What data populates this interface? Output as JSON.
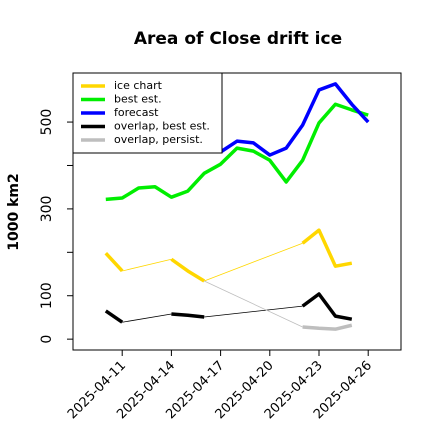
{
  "chart_data": {
    "type": "line",
    "title": "Area of Close drift ice",
    "y_label": "1000 km2",
    "x": [
      "2025-04-10",
      "2025-04-11",
      "2025-04-12",
      "2025-04-13",
      "2025-04-14",
      "2025-04-15",
      "2025-04-16",
      "2025-04-17",
      "2025-04-18",
      "2025-04-19",
      "2025-04-20",
      "2025-04-21",
      "2025-04-22",
      "2025-04-23",
      "2025-04-24",
      "2025-04-25",
      "2025-04-26"
    ],
    "xlim": [
      "2025-04-08",
      "2025-04-28"
    ],
    "xticks": [
      "2025-04-11",
      "2025-04-14",
      "2025-04-17",
      "2025-04-20",
      "2025-04-23",
      "2025-04-26"
    ],
    "xtick_colors": [
      "#000000",
      "#000000",
      "#228b22",
      "#000000",
      "#000000",
      "#000000"
    ],
    "ylim": [
      -25,
      613
    ],
    "yticks": [
      0,
      100,
      300,
      500
    ],
    "yminor": [
      200,
      400
    ],
    "legend": "top-left",
    "series": [
      {
        "name": "ice chart",
        "color": "#ffd700",
        "values": [
          198,
          157,
          null,
          null,
          184,
          157,
          134,
          null,
          null,
          null,
          null,
          null,
          221,
          251,
          168,
          175,
          null
        ]
      },
      {
        "name": "best est.",
        "color": "#00ee00",
        "values": [
          322,
          325,
          348,
          351,
          327,
          341,
          382,
          403,
          440,
          433,
          412,
          362,
          412,
          498,
          541,
          528,
          516
        ]
      },
      {
        "name": "forecast",
        "color": "#0000ff",
        "values": [
          null,
          null,
          null,
          null,
          null,
          null,
          null,
          431,
          456,
          452,
          424,
          440,
          493,
          574,
          588,
          541,
          500
        ]
      },
      {
        "name": "overlap, best est.",
        "color": "#000000",
        "values": [
          65,
          39,
          null,
          null,
          58,
          55,
          51,
          null,
          null,
          null,
          null,
          null,
          76,
          104,
          53,
          46,
          null
        ]
      },
      {
        "name": "overlap, persist.",
        "color": "#bebebe",
        "values": [
          null,
          null,
          null,
          null,
          null,
          null,
          134,
          null,
          null,
          null,
          null,
          null,
          28,
          25,
          23,
          32,
          null
        ]
      }
    ]
  }
}
